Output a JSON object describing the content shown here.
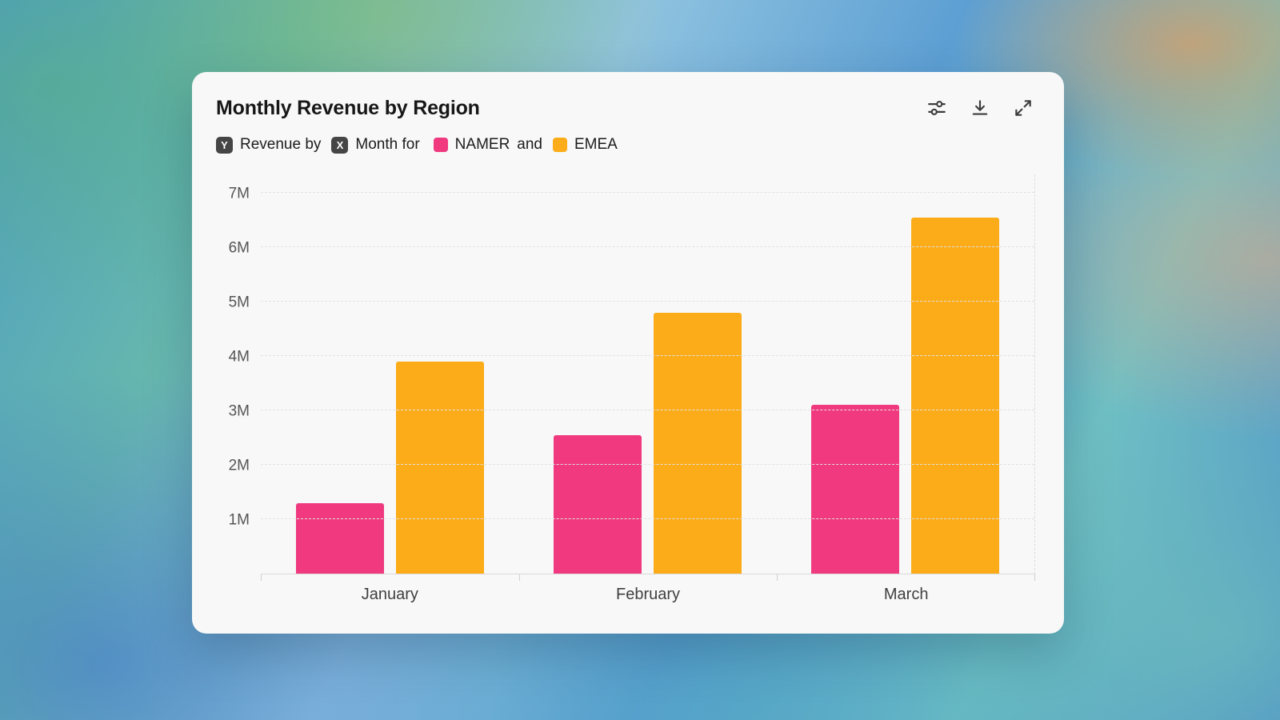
{
  "card": {
    "title": "Monthly Revenue by Region"
  },
  "toolbar": {
    "icons": [
      "sliders-icon",
      "download-icon",
      "expand-icon"
    ]
  },
  "subtitle": {
    "y_badge": "Y",
    "y_label": "Revenue by",
    "x_badge": "X",
    "x_label": "Month for",
    "conjunction": "and"
  },
  "chart_data": {
    "type": "bar",
    "title": "Monthly Revenue by Region",
    "categories": [
      "January",
      "February",
      "March"
    ],
    "series": [
      {
        "name": "NAMER",
        "color": "#F0397E",
        "values": [
          1.3,
          2.55,
          3.1
        ]
      },
      {
        "name": "EMEA",
        "color": "#FBAC18",
        "values": [
          3.9,
          4.8,
          6.55
        ]
      }
    ],
    "units": "millions",
    "ylabel": "Revenue",
    "yticks": [
      1,
      2,
      3,
      4,
      5,
      6,
      7
    ],
    "ytick_labels": [
      "1M",
      "2M",
      "3M",
      "4M",
      "5M",
      "6M",
      "7M"
    ],
    "ylim": [
      0,
      7
    ],
    "grid": "horizontal-dashed",
    "legend_position": "subtitle"
  }
}
